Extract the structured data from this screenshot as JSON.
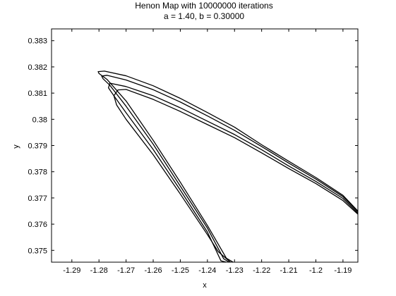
{
  "chart_data": {
    "type": "scatter",
    "title": "Henon Map with 10000000 iterations",
    "subtitle": "a = 1.40, b = 0.30000",
    "xlabel": "x",
    "ylabel": "y",
    "xlim": [
      -1.2975,
      -1.1845
    ],
    "ylim": [
      0.37455,
      0.38345
    ],
    "xticks": [
      -1.29,
      -1.28,
      -1.27,
      -1.26,
      -1.25,
      -1.24,
      -1.23,
      -1.22,
      -1.21,
      -1.2,
      -1.19
    ],
    "xtick_labels": [
      "-1.29",
      "-1.28",
      "-1.27",
      "-1.26",
      "-1.25",
      "-1.24",
      "-1.23",
      "-1.22",
      "-1.21",
      "-1.2",
      "-1.19"
    ],
    "yticks": [
      0.375,
      0.376,
      0.377,
      0.378,
      0.379,
      0.38,
      0.381,
      0.382,
      0.383
    ],
    "ytick_labels": [
      "0.375",
      "0.376",
      "0.377",
      "0.378",
      "0.379",
      "0.38",
      "0.381",
      "0.382",
      "0.383"
    ],
    "grid": false,
    "marker_color": "#000000",
    "series": [
      {
        "x": [
          -1.2305,
          -1.233,
          -1.24,
          -1.25,
          -1.26,
          -1.27,
          -1.277,
          -1.28,
          -1.2803,
          -1.278,
          -1.27,
          -1.26,
          -1.25,
          -1.24,
          -1.23,
          -1.22,
          -1.21,
          -1.2,
          -1.19,
          -1.1845
        ],
        "y": [
          0.37455,
          0.3747,
          0.37595,
          0.3776,
          0.3792,
          0.3807,
          0.38152,
          0.38175,
          0.38182,
          0.38184,
          0.38166,
          0.38128,
          0.3808,
          0.38026,
          0.3797,
          0.37903,
          0.3784,
          0.37778,
          0.3771,
          0.3765
        ]
      },
      {
        "x": [
          -1.232,
          -1.234,
          -1.24,
          -1.25,
          -1.26,
          -1.27,
          -1.276,
          -1.2785,
          -1.279,
          -1.277,
          -1.27,
          -1.26,
          -1.25,
          -1.24,
          -1.23,
          -1.22,
          -1.21,
          -1.2,
          -1.19,
          -1.1845
        ],
        "y": [
          0.37455,
          0.37468,
          0.37585,
          0.37745,
          0.37905,
          0.3805,
          0.3813,
          0.38155,
          0.38165,
          0.38168,
          0.3815,
          0.38113,
          0.38066,
          0.38013,
          0.37958,
          0.37896,
          0.37833,
          0.37772,
          0.37705,
          0.37647
        ]
      },
      {
        "x": [
          -1.233,
          -1.235,
          -1.24,
          -1.25,
          -1.26,
          -1.27,
          -1.2745,
          -1.2765,
          -1.276,
          -1.27,
          -1.26,
          -1.25,
          -1.24,
          -1.23,
          -1.22,
          -1.21,
          -1.2,
          -1.19,
          -1.1845
        ],
        "y": [
          0.37455,
          0.3746,
          0.3757,
          0.3773,
          0.37885,
          0.38025,
          0.3809,
          0.3812,
          0.38138,
          0.38125,
          0.3809,
          0.38044,
          0.37993,
          0.37942,
          0.37884,
          0.37822,
          0.37763,
          0.37698,
          0.37642
        ]
      },
      {
        "x": [
          -1.2315,
          -1.236,
          -1.24,
          -1.25,
          -1.26,
          -1.27,
          -1.2735,
          -1.2745,
          -1.273,
          -1.27,
          -1.26,
          -1.25,
          -1.24,
          -1.23,
          -1.22,
          -1.21,
          -1.2,
          -1.19,
          -1.1845
        ],
        "y": [
          0.37455,
          0.37495,
          0.3756,
          0.37715,
          0.37865,
          0.38,
          0.38055,
          0.3809,
          0.38112,
          0.38114,
          0.38076,
          0.3803,
          0.3798,
          0.3793,
          0.37872,
          0.37812,
          0.37755,
          0.3769,
          0.37638
        ]
      }
    ]
  }
}
